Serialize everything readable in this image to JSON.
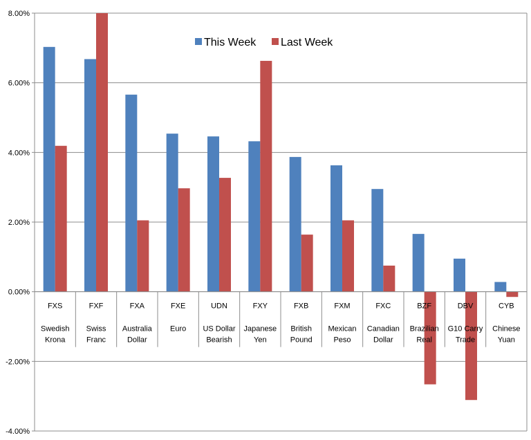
{
  "chart_data": {
    "type": "bar",
    "categories": [
      {
        "ticker": "FXS",
        "name": [
          "Swedish",
          "Krona"
        ]
      },
      {
        "ticker": "FXF",
        "name": [
          "Swiss",
          "Franc"
        ]
      },
      {
        "ticker": "FXA",
        "name": [
          "Australia",
          "Dollar"
        ]
      },
      {
        "ticker": "FXE",
        "name": [
          "Euro"
        ]
      },
      {
        "ticker": "UDN",
        "name": [
          "US Dollar",
          "Bearish"
        ]
      },
      {
        "ticker": "FXY",
        "name": [
          "Japanese",
          "Yen"
        ]
      },
      {
        "ticker": "FXB",
        "name": [
          "British",
          "Pound"
        ]
      },
      {
        "ticker": "FXM",
        "name": [
          "Mexican",
          "Peso"
        ]
      },
      {
        "ticker": "FXC",
        "name": [
          "Canadian",
          "Dollar"
        ]
      },
      {
        "ticker": "BZF",
        "name": [
          "Brazilian",
          "Real"
        ]
      },
      {
        "ticker": "DBV",
        "name": [
          "G10 Carry",
          "Trade"
        ]
      },
      {
        "ticker": "CYB",
        "name": [
          "Chinese",
          "Yuan"
        ]
      }
    ],
    "series": [
      {
        "name": "This Week",
        "color": "#4F81BD",
        "values": [
          7.03,
          6.68,
          5.66,
          4.54,
          4.46,
          4.32,
          3.87,
          3.63,
          2.95,
          1.66,
          0.95,
          0.28
        ]
      },
      {
        "name": "Last Week",
        "color": "#C0504D",
        "values": [
          4.19,
          8.0,
          2.05,
          2.97,
          3.27,
          6.63,
          1.64,
          2.05,
          0.75,
          -2.66,
          -3.11,
          -0.15
        ]
      }
    ],
    "ylim": [
      -4,
      8
    ],
    "yticks": [
      8,
      6,
      4,
      2,
      0,
      -2,
      -4
    ],
    "ytick_labels": [
      "8.00%",
      "6.00%",
      "4.00%",
      "2.00%",
      "0.00%",
      "-2.00%",
      "-4.00%"
    ],
    "title": "",
    "xlabel": "",
    "ylabel": "",
    "grid": true,
    "legend_position": "top-center",
    "gridline_color": "#8C8C8C"
  }
}
